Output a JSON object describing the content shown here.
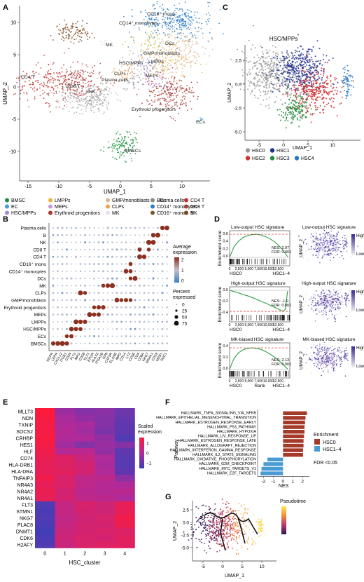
{
  "panels": {
    "A": {
      "letter": "A",
      "xlabel": "UMAP_1",
      "ylabel": "UMAP_2",
      "xticks": [
        "-15",
        "-10",
        "-5",
        "0",
        "5",
        "10"
      ],
      "yticks": [
        "10",
        "5",
        "0",
        "-5",
        "-10"
      ],
      "labels": [
        "CD16⁺ mono",
        "CD14⁺ monocytes",
        "MK",
        "DCs",
        "GMP/monoblasts",
        "HSC/MPPs",
        "LMPPs",
        "CLPs",
        "MEPs",
        "CD4 T",
        "CD8 T",
        "NK",
        "Plasma cells",
        "Erythroid progenitors",
        "ECs",
        "BMSCs"
      ],
      "legend": [
        {
          "name": "BMSC",
          "color": "#1a8f3c"
        },
        {
          "name": "EC",
          "color": "#39a0d8"
        },
        {
          "name": "HSC/MPPs",
          "color": "#9b8fd0"
        },
        {
          "name": "LMPPs",
          "color": "#e9b33a"
        },
        {
          "name": "MEPs",
          "color": "#c79ad4"
        },
        {
          "name": "Erythroid progenitors",
          "color": "#a8352f"
        },
        {
          "name": "GMP/monoblasts",
          "color": "#e0b68c"
        },
        {
          "name": "CLPs",
          "color": "#f0a34c"
        },
        {
          "name": "MK",
          "color": "#e6e0f0"
        },
        {
          "name": "DCs",
          "color": "#b8c04a"
        },
        {
          "name": "CD14⁺ monocytes",
          "color": "#2f7fc1"
        },
        {
          "name": "CD16⁺ mono",
          "color": "#7a5a2e"
        },
        {
          "name": "CD4 T",
          "color": "#c0302b"
        },
        {
          "name": "CD8 T",
          "color": "#a04040"
        },
        {
          "name": "NK",
          "color": "#a8a8a8"
        },
        {
          "name": "B",
          "color": "#7a4a1e"
        },
        {
          "name": "Plasma cells",
          "color": "#8a8a8a"
        }
      ]
    },
    "B": {
      "letter": "B",
      "rows": [
        "Plasma cells",
        "B",
        "NK",
        "CD8 T",
        "CD4 T",
        "CD16⁺ mono",
        "CD14⁺ monocytes",
        "DCs",
        "MK",
        "CLPs",
        "GMP/monoblasts",
        "Erythroid progenitors",
        "MEPs",
        "LMPPs",
        "HSC/MPPs",
        "ECs",
        "BMSCs"
      ],
      "genes": [
        "NGFR",
        "LEPR",
        "CXCL12",
        "ITGB1",
        "CD34",
        "FLT3",
        "MPO",
        "CD38",
        "KLF1",
        "EPOR",
        "ALAS2",
        "ITGA2B",
        "GP9",
        "CSF3R",
        "ELANE",
        "MPO",
        "CD14",
        "LYZ",
        "CD3E",
        "CD4",
        "CD8A",
        "NKG7",
        "MS4A1",
        "CD19",
        "MZB1",
        "SDC1"
      ],
      "legend_avg_title": "Average\nexpression",
      "legend_avg_ticks": [
        "2",
        "1",
        "0"
      ],
      "legend_pct_title": "Percent\nexpressed",
      "legend_pct_values": [
        "0",
        "25",
        "50",
        "75"
      ]
    },
    "C": {
      "letter": "C",
      "title": "HSC/MPPs",
      "xlabel": "UMAP_1",
      "ylabel": "UMAP_2",
      "xticks": [
        "-5",
        "0",
        "5",
        "10"
      ],
      "yticks": [
        "2.5",
        "0.0",
        "-2.5",
        "-5.0"
      ],
      "legend": [
        {
          "name": "HSC0",
          "color": "#9a9a9a"
        },
        {
          "name": "HSC1",
          "color": "#1f2f8f"
        },
        {
          "name": "HSC2",
          "color": "#d03030"
        },
        {
          "name": "HSC3",
          "color": "#1e8a3a"
        },
        {
          "name": "HSC4",
          "color": "#2c78c0"
        }
      ]
    },
    "D": {
      "letter": "D",
      "rows": [
        {
          "title": "Low-output HSC signature",
          "nes": "NES: 2.07",
          "fdr": "FDR: 0.001",
          "yticks": [
            "0.6",
            "0.4",
            "0.2",
            "0.0"
          ],
          "up": true
        },
        {
          "title": "High-output HSC signature",
          "nes": "NES: -1.9",
          "fdr": "FDR: 0.001",
          "yticks": [
            "0.0",
            "-0.2",
            "-0.4"
          ],
          "up": false
        },
        {
          "title": "MK-biased HSC signature",
          "nes": "NES: 2.13",
          "fdr": "FDR: 0.001",
          "yticks": [
            "0.4",
            "0.2",
            "0.0"
          ],
          "up": true
        }
      ],
      "ylabel": "Enrichment score",
      "xticks": [
        "0",
        "2,500",
        "5,000",
        "7,500",
        "10,000",
        "12,500"
      ],
      "xlabel": "Rank",
      "left_group": "HSC0",
      "right_group": "HSC1–4",
      "umap_ylabel": "UMAP_2",
      "high": "High",
      "low": "Low"
    },
    "E": {
      "letter": "E",
      "genes": [
        "MLLT3",
        "NDN",
        "TXNIP",
        "SOCS2",
        "CRHBP",
        "HES1",
        "HLF",
        "CD74",
        "HLA-DRB1",
        "HLA-DRA",
        "TNFAIP3",
        "NR4A3",
        "NR4A2",
        "NR4A1",
        "FLT3",
        "STMN1",
        "NKG7",
        "PLAC8",
        "DNMT1",
        "CDK6",
        "H2AFY"
      ],
      "clusters": [
        "0",
        "1",
        "2",
        "3",
        "4"
      ],
      "xlabel": "HSC_cluster",
      "legend_title": "Scaled\nexpression",
      "legend_ticks": [
        "1",
        "0",
        "−1"
      ]
    },
    "F": {
      "letter": "F",
      "ylabel": "Pathway",
      "xlabel": "NES",
      "xticks": [
        "-2",
        "-1",
        "0",
        "1",
        "2"
      ],
      "legend_title": "Enrichment",
      "legend_items": [
        {
          "name": "HSC0",
          "color": "#a63a2a"
        },
        {
          "name": "HSC1–4",
          "color": "#4a9ad4"
        }
      ],
      "note": "FDR <0.05"
    },
    "G": {
      "letter": "G",
      "xlabel": "UMAP_1",
      "ylabel": "UMAP_2",
      "xticks": [
        "-5",
        "0",
        "5",
        "10"
      ],
      "yticks": [
        "2.5",
        "0.0",
        "-2.5",
        "-5.0"
      ],
      "legend_title": "Pseudotime"
    }
  },
  "chart_data": [
    {
      "type": "bar",
      "title": "",
      "xlabel": "NES",
      "ylabel": "Pathway",
      "categories": [
        "HALLMARK_TNFA_SIGNALING_VIA_NFKB",
        "HALLMARK_EPITHELIAL_MESENCHYMAL_TRANSITION",
        "HALLMARK_ESTROGEN_RESPONSE_EARLY",
        "HALLMARK_P53_PATHWAY",
        "HALLMARK_HYPOXIA",
        "HALLMARK_UV_RESPONSE_UP",
        "HALLMARK_ESTROGEN_RESPONSE_LATE",
        "HALLMARK_ALLOGRAFT_REJECTION",
        "HALLMARK_INTERFERON_GAMMA_RESPONSE",
        "HALLMARK_IL2_STAT5_SIGNALING",
        "HALLMARK_OXIDATIVE_PHOSPHORYLATION",
        "HALLMARK_G2M_CHECKPOINT",
        "HALLMARK_MYC_TARGETS_V1",
        "HALLMARK_E2F_TARGETS"
      ],
      "values": [
        2.45,
        2.3,
        2.25,
        2.2,
        2.2,
        2.15,
        2.1,
        2.1,
        2.05,
        2.05,
        -1.6,
        -2.0,
        -2.2,
        -2.3
      ],
      "series": [
        {
          "name": "HSC0"
        },
        {
          "name": "HSC1–4"
        }
      ],
      "xlim": [
        -2.6,
        2.7
      ],
      "legend": "right"
    },
    {
      "type": "heatmap",
      "xlabel": "HSC_cluster",
      "x": [
        "0",
        "1",
        "2",
        "3",
        "4"
      ],
      "y": [
        "MLLT3",
        "NDN",
        "TXNIP",
        "SOCS2",
        "CRHBP",
        "HES1",
        "HLF",
        "CD74",
        "HLA-DRB1",
        "HLA-DRA",
        "TNFAIP3",
        "NR4A3",
        "NR4A2",
        "NR4A1",
        "FLT3",
        "STMN1",
        "NKG7",
        "PLAC8",
        "DNMT1",
        "CDK6",
        "H2AFY"
      ],
      "values": [
        [
          1.7,
          -0.2,
          -0.5,
          -0.4,
          -0.8
        ],
        [
          1.6,
          0.0,
          -0.3,
          -0.5,
          -0.9
        ],
        [
          1.5,
          0.1,
          0.0,
          -0.5,
          -1.0
        ],
        [
          1.5,
          0.2,
          -0.1,
          -0.6,
          -1.0
        ],
        [
          1.6,
          0.1,
          0.1,
          -0.3,
          -1.2
        ],
        [
          1.5,
          -0.1,
          -0.5,
          -0.2,
          -0.5
        ],
        [
          1.4,
          0.2,
          0.3,
          -0.3,
          -1.0
        ],
        [
          1.3,
          1.0,
          0.6,
          0.1,
          -1.1
        ],
        [
          1.2,
          1.0,
          0.8,
          0.0,
          -1.1
        ],
        [
          1.2,
          1.1,
          0.8,
          0.1,
          -1.0
        ],
        [
          1.4,
          0.9,
          0.4,
          0.3,
          -0.4
        ],
        [
          1.2,
          0.9,
          0.4,
          0.2,
          0.1
        ],
        [
          1.3,
          0.8,
          0.3,
          0.2,
          0.3
        ],
        [
          1.2,
          0.8,
          0.4,
          0.3,
          0.1
        ],
        [
          -1.2,
          0.5,
          0.9,
          0.7,
          1.2
        ],
        [
          -1.3,
          0.5,
          0.8,
          0.7,
          1.2
        ],
        [
          -1.2,
          0.4,
          0.7,
          0.9,
          1.4
        ],
        [
          -1.3,
          0.5,
          0.8,
          0.8,
          1.3
        ],
        [
          -1.4,
          0.6,
          0.8,
          0.9,
          1.0
        ],
        [
          -1.3,
          0.7,
          0.9,
          0.8,
          1.1
        ],
        [
          -1.2,
          0.6,
          0.9,
          1.0,
          1.1
        ]
      ],
      "zlim": [
        -1.5,
        1.7
      ]
    },
    {
      "type": "line",
      "title": "Low-output HSC signature",
      "ylabel": "Enrichment score",
      "xlabel": "Rank",
      "xlim": [
        0,
        13500
      ],
      "ylim": [
        0,
        0.7
      ],
      "x": [
        0,
        500,
        1000,
        2000,
        3000,
        4000,
        5000,
        6000,
        7000,
        8000,
        9000,
        10000,
        11000,
        12000,
        13000
      ],
      "values": [
        0,
        0.15,
        0.3,
        0.45,
        0.55,
        0.6,
        0.63,
        0.64,
        0.62,
        0.58,
        0.52,
        0.44,
        0.33,
        0.2,
        0.02
      ]
    },
    {
      "type": "line",
      "title": "High-output HSC signature",
      "ylabel": "Enrichment score",
      "xlabel": "Rank",
      "xlim": [
        0,
        13500
      ],
      "ylim": [
        -0.55,
        0.05
      ],
      "x": [
        0,
        1000,
        2000,
        3000,
        4000,
        5000,
        6000,
        7000,
        8000,
        9000,
        10000,
        11000,
        12000,
        12500,
        13000
      ],
      "values": [
        0,
        -0.03,
        -0.06,
        -0.1,
        -0.13,
        -0.17,
        -0.21,
        -0.26,
        -0.3,
        -0.35,
        -0.4,
        -0.45,
        -0.5,
        -0.45,
        -0.02
      ]
    },
    {
      "type": "line",
      "title": "MK-biased HSC signature",
      "ylabel": "Enrichment score",
      "xlabel": "Rank",
      "xlim": [
        0,
        13500
      ],
      "ylim": [
        0,
        0.5
      ],
      "x": [
        0,
        500,
        1000,
        2000,
        3000,
        4000,
        5000,
        6000,
        7000,
        8000,
        9000,
        10000,
        11000,
        12000,
        13000
      ],
      "values": [
        0,
        0.12,
        0.22,
        0.33,
        0.39,
        0.42,
        0.43,
        0.42,
        0.4,
        0.36,
        0.31,
        0.25,
        0.18,
        0.1,
        0.01
      ]
    }
  ]
}
